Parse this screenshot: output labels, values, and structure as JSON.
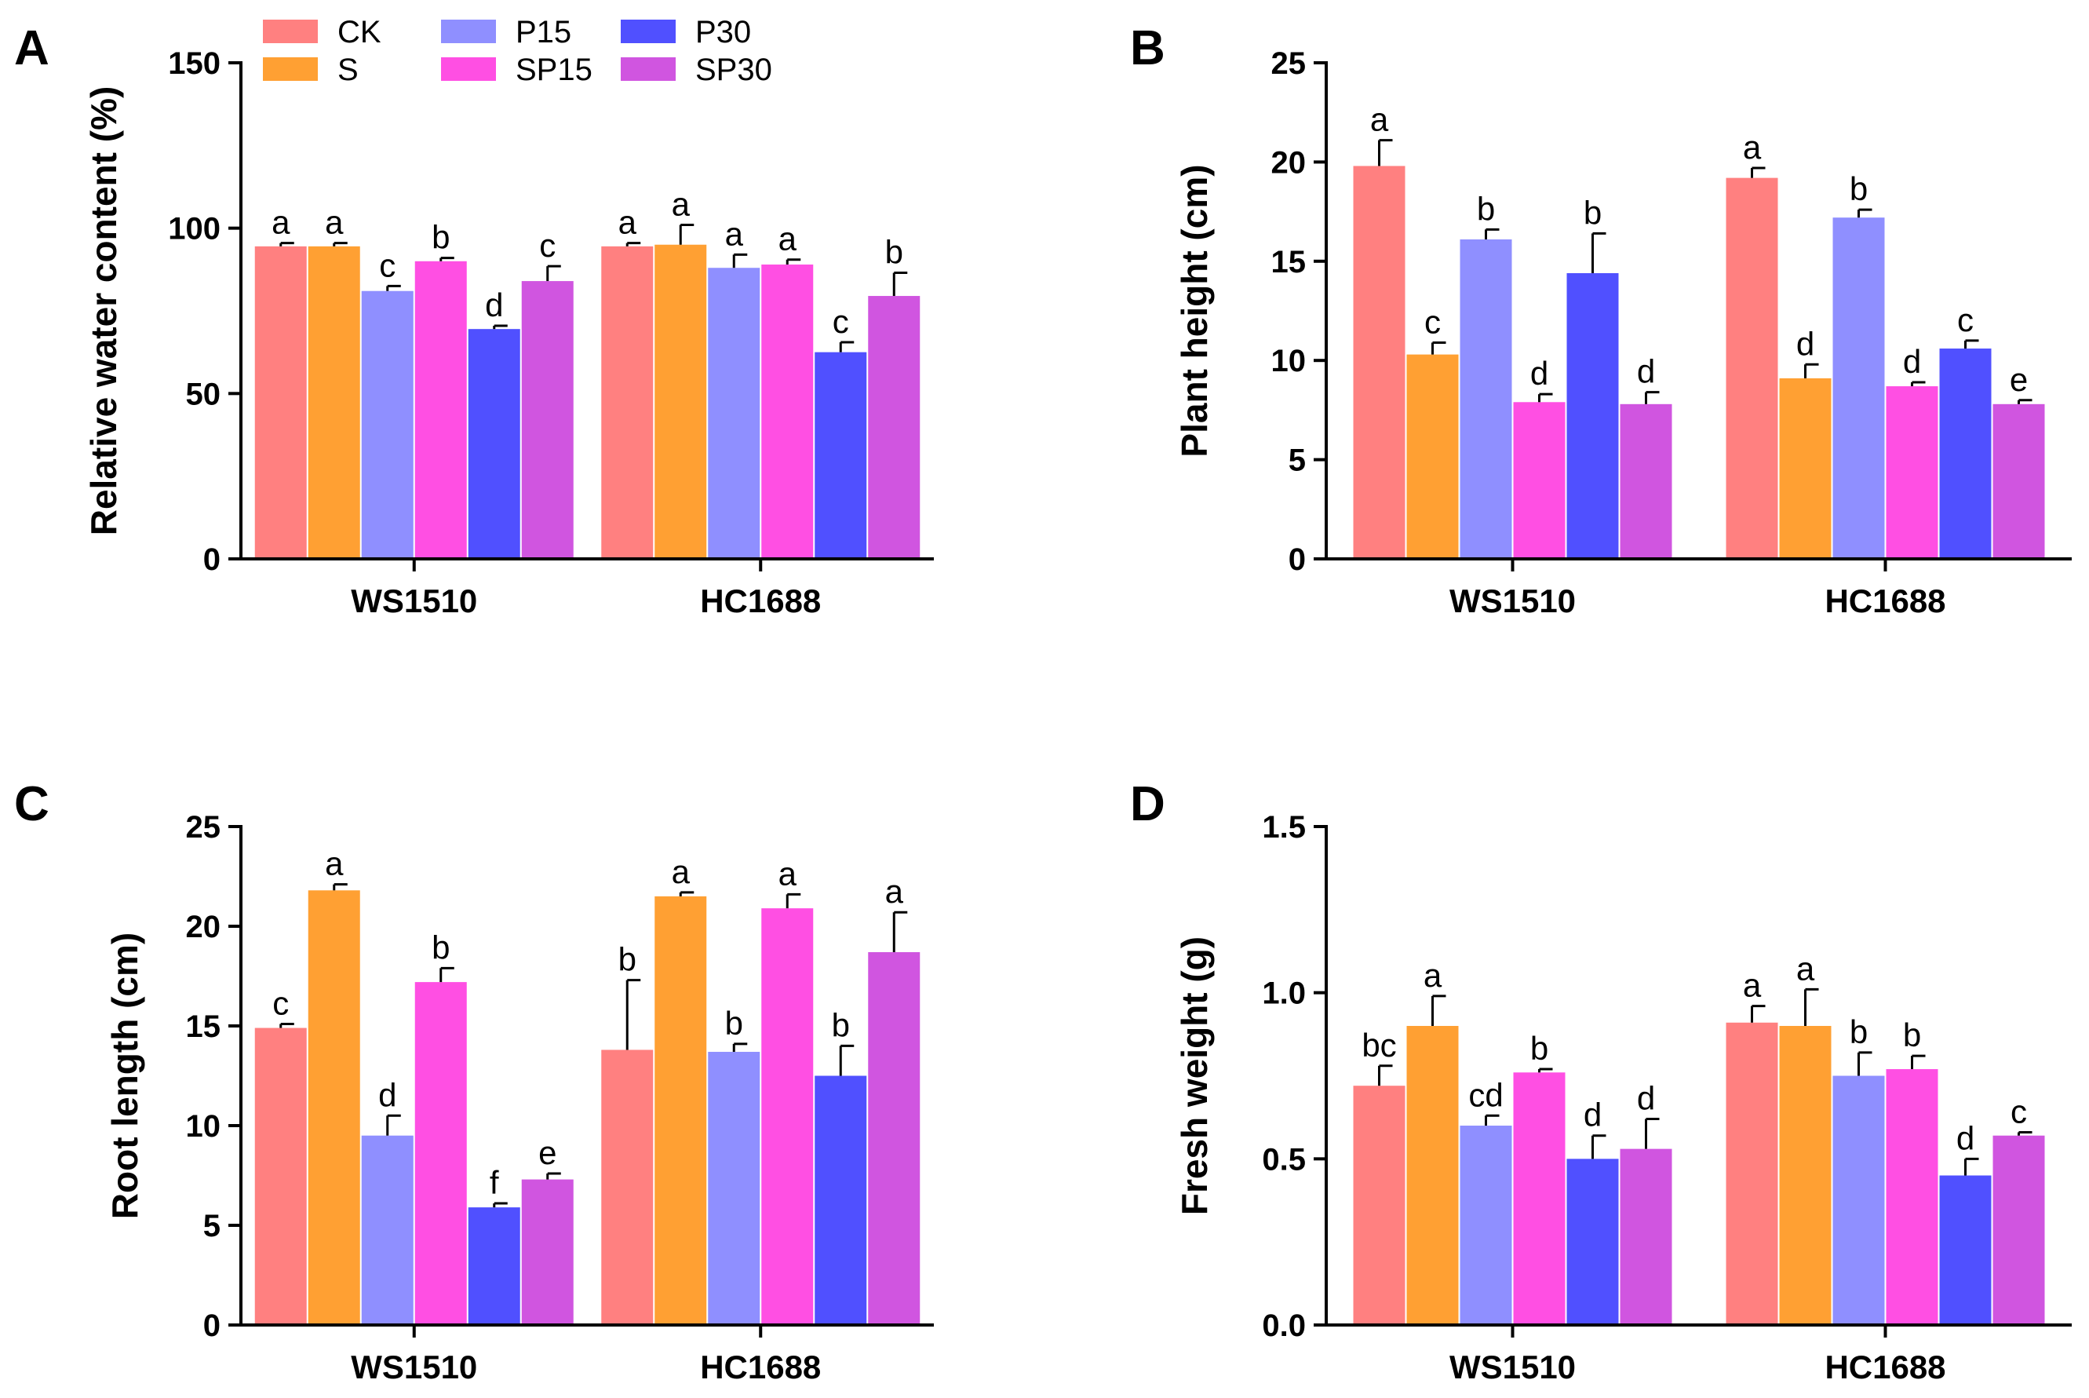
{
  "series_colors": {
    "CK": "#FF8080",
    "S": "#FFA033",
    "P15": "#8F8FFF",
    "P30": "#5050FF",
    "SP15": "#FF4FE3",
    "SP30": "#D055E0"
  },
  "legend": [
    {
      "key": "CK",
      "label": "CK"
    },
    {
      "key": "S",
      "label": "S"
    },
    {
      "key": "P15",
      "label": "P15"
    },
    {
      "key": "SP15",
      "label": "SP15"
    },
    {
      "key": "P30",
      "label": "P30"
    },
    {
      "key": "SP30",
      "label": "SP30"
    }
  ],
  "chart_data": [
    {
      "panel": "A",
      "type": "bar",
      "title": "",
      "xlabel": "",
      "ylabel": "Relative water content (%)",
      "ylim": [
        0,
        150
      ],
      "yticks": [
        0,
        50,
        100,
        150
      ],
      "ytick_labels": [
        "0",
        "50",
        "100",
        "150"
      ],
      "categories": [
        "WS1510",
        "HC1688"
      ],
      "series": [
        {
          "name": "CK",
          "values": [
            94.5,
            94.5
          ],
          "errors": [
            1.0,
            1.0
          ],
          "letters": [
            "a",
            "a"
          ]
        },
        {
          "name": "S",
          "values": [
            94.5,
            95.0
          ],
          "errors": [
            1.0,
            6.0
          ],
          "letters": [
            "a",
            "a"
          ]
        },
        {
          "name": "P15",
          "values": [
            81.0,
            88.0
          ],
          "errors": [
            1.5,
            4.0
          ],
          "letters": [
            "c",
            "a"
          ]
        },
        {
          "name": "SP15",
          "values": [
            90.0,
            89.0
          ],
          "errors": [
            1.0,
            1.5
          ],
          "letters": [
            "b",
            "a"
          ]
        },
        {
          "name": "P30",
          "values": [
            69.5,
            62.5
          ],
          "errors": [
            1.0,
            3.0
          ],
          "letters": [
            "d",
            "c"
          ]
        },
        {
          "name": "SP30",
          "values": [
            84.0,
            79.5
          ],
          "errors": [
            4.5,
            7.0
          ],
          "letters": [
            "c",
            "b"
          ]
        }
      ]
    },
    {
      "panel": "B",
      "type": "bar",
      "title": "",
      "xlabel": "",
      "ylabel": "Plant height (cm)",
      "ylim": [
        0,
        25
      ],
      "yticks": [
        0,
        5,
        10,
        15,
        20,
        25
      ],
      "ytick_labels": [
        "0",
        "5",
        "10",
        "15",
        "20",
        "25"
      ],
      "categories": [
        "WS1510",
        "HC1688"
      ],
      "series": [
        {
          "name": "CK",
          "values": [
            19.8,
            19.2
          ],
          "errors": [
            1.3,
            0.5
          ],
          "letters": [
            "a",
            "a"
          ]
        },
        {
          "name": "S",
          "values": [
            10.3,
            9.1
          ],
          "errors": [
            0.6,
            0.7
          ],
          "letters": [
            "c",
            "d"
          ]
        },
        {
          "name": "P15",
          "values": [
            16.1,
            17.2
          ],
          "errors": [
            0.5,
            0.4
          ],
          "letters": [
            "b",
            "b"
          ]
        },
        {
          "name": "SP15",
          "values": [
            7.9,
            8.7
          ],
          "errors": [
            0.4,
            0.2
          ],
          "letters": [
            "d",
            "d"
          ]
        },
        {
          "name": "P30",
          "values": [
            14.4,
            10.6
          ],
          "errors": [
            2.0,
            0.4
          ],
          "letters": [
            "b",
            "c"
          ]
        },
        {
          "name": "SP30",
          "values": [
            7.8,
            7.8
          ],
          "errors": [
            0.6,
            0.2
          ],
          "letters": [
            "d",
            "e"
          ]
        }
      ]
    },
    {
      "panel": "C",
      "type": "bar",
      "title": "",
      "xlabel": "",
      "ylabel": "Root length (cm)",
      "ylim": [
        0,
        25
      ],
      "yticks": [
        0,
        5,
        10,
        15,
        20,
        25
      ],
      "ytick_labels": [
        "0",
        "5",
        "10",
        "15",
        "20",
        "25"
      ],
      "categories": [
        "WS1510",
        "HC1688"
      ],
      "series": [
        {
          "name": "CK",
          "values": [
            14.9,
            13.8
          ],
          "errors": [
            0.2,
            3.5
          ],
          "letters": [
            "c",
            "b"
          ]
        },
        {
          "name": "S",
          "values": [
            21.8,
            21.5
          ],
          "errors": [
            0.3,
            0.2
          ],
          "letters": [
            "a",
            "a"
          ]
        },
        {
          "name": "P15",
          "values": [
            9.5,
            13.7
          ],
          "errors": [
            1.0,
            0.4
          ],
          "letters": [
            "d",
            "b"
          ]
        },
        {
          "name": "SP15",
          "values": [
            17.2,
            20.9
          ],
          "errors": [
            0.7,
            0.7
          ],
          "letters": [
            "b",
            "a"
          ]
        },
        {
          "name": "P30",
          "values": [
            5.9,
            12.5
          ],
          "errors": [
            0.2,
            1.5
          ],
          "letters": [
            "f",
            "b"
          ]
        },
        {
          "name": "SP30",
          "values": [
            7.3,
            18.7
          ],
          "errors": [
            0.3,
            2.0
          ],
          "letters": [
            "e",
            "a"
          ]
        }
      ]
    },
    {
      "panel": "D",
      "type": "bar",
      "title": "",
      "xlabel": "",
      "ylabel": "Fresh weight (g)",
      "ylim": [
        0,
        1.5
      ],
      "yticks": [
        0,
        0.5,
        1.0,
        1.5
      ],
      "ytick_labels": [
        "0.0",
        "0.5",
        "1.0",
        "1.5"
      ],
      "categories": [
        "WS1510",
        "HC1688"
      ],
      "series": [
        {
          "name": "CK",
          "values": [
            0.72,
            0.91
          ],
          "errors": [
            0.06,
            0.05
          ],
          "letters": [
            "bc",
            "a"
          ]
        },
        {
          "name": "S",
          "values": [
            0.9,
            0.9
          ],
          "errors": [
            0.09,
            0.11
          ],
          "letters": [
            "a",
            "a"
          ]
        },
        {
          "name": "P15",
          "values": [
            0.6,
            0.75
          ],
          "errors": [
            0.03,
            0.07
          ],
          "letters": [
            "cd",
            "b"
          ]
        },
        {
          "name": "SP15",
          "values": [
            0.76,
            0.77
          ],
          "errors": [
            0.01,
            0.04
          ],
          "letters": [
            "b",
            "b"
          ]
        },
        {
          "name": "P30",
          "values": [
            0.5,
            0.45
          ],
          "errors": [
            0.07,
            0.05
          ],
          "letters": [
            "d",
            "d"
          ]
        },
        {
          "name": "SP30",
          "values": [
            0.53,
            0.57
          ],
          "errors": [
            0.09,
            0.01
          ],
          "letters": [
            "d",
            "c"
          ]
        }
      ]
    }
  ]
}
